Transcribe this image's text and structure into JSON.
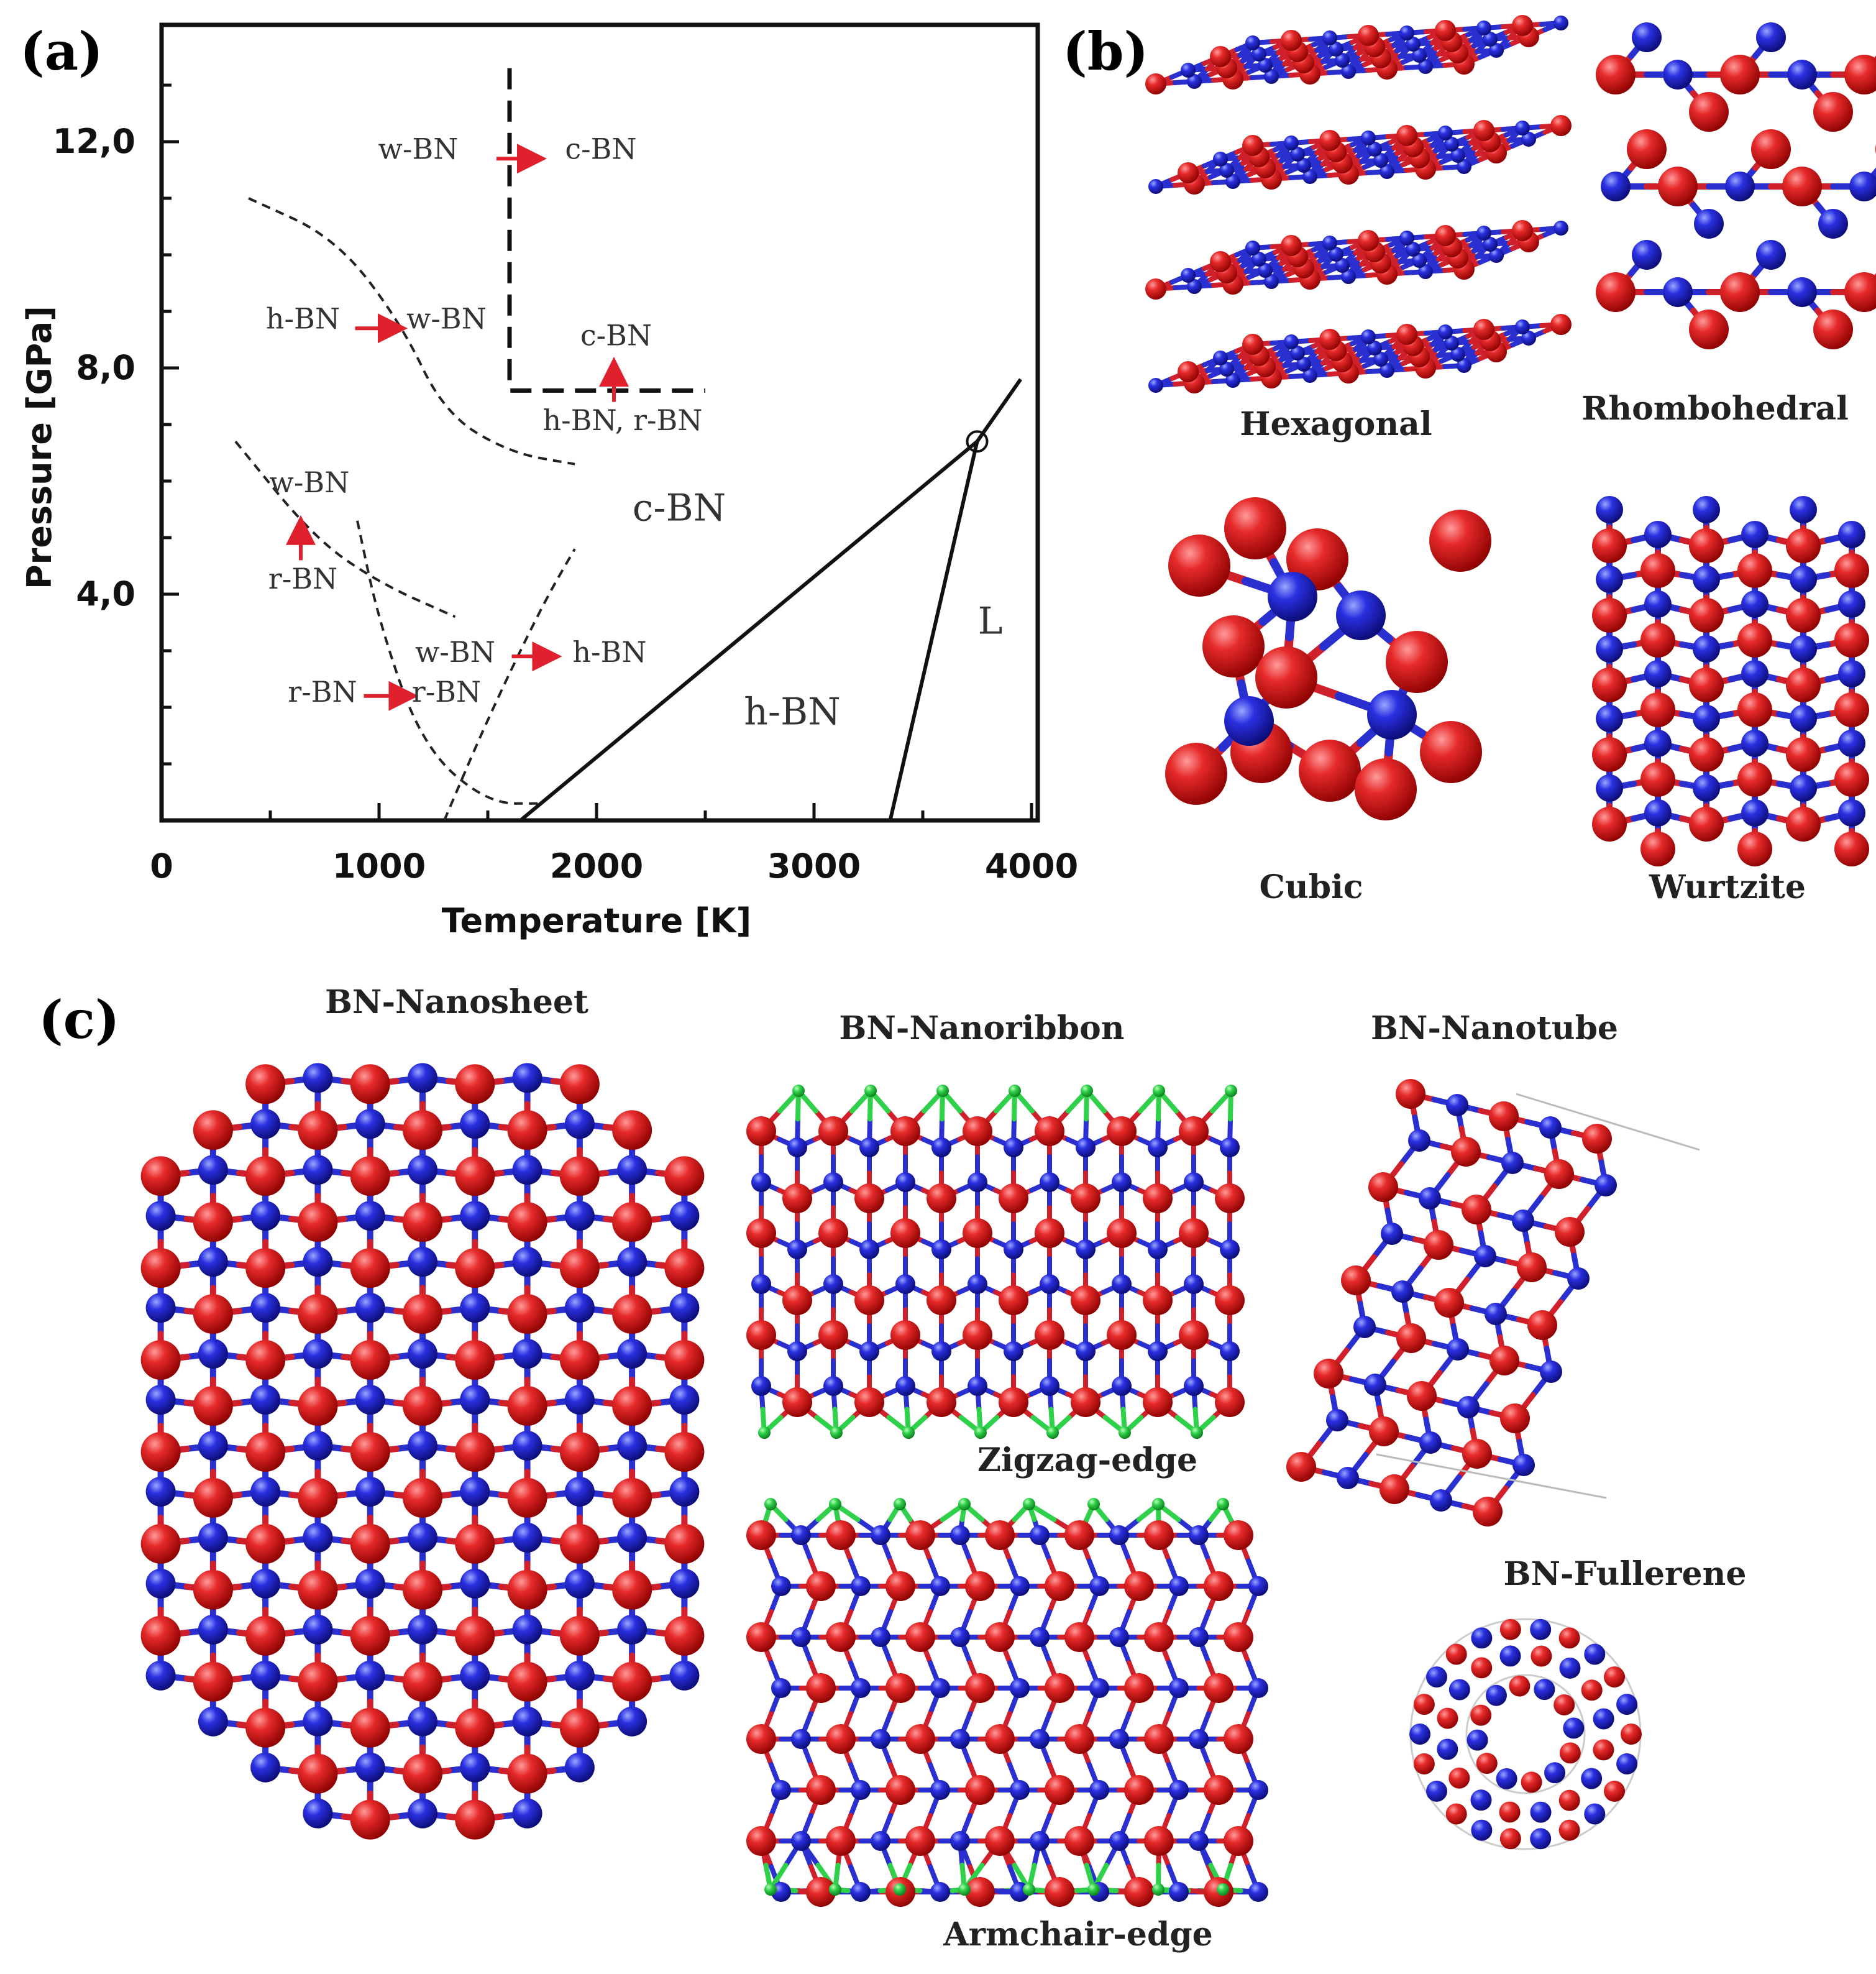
{
  "panels": {
    "a": {
      "label": "(a)",
      "chart_data": {
        "type": "phase-diagram",
        "xlabel": "Temperature [K]",
        "ylabel": "Pressure [GPa]",
        "xlim": [
          0,
          4000
        ],
        "ylim": [
          0,
          14
        ],
        "xticks": [
          "0",
          "1000",
          "2000",
          "3000",
          "4000"
        ],
        "yticks": [
          "12,0",
          "8,0",
          "4,0"
        ],
        "ytick_values": [
          12,
          8,
          4
        ],
        "boundaries": [
          {
            "style": "solid",
            "points": [
              [
                1650,
                0
              ],
              [
                3750,
                6.7
              ],
              [
                3950,
                7.8
              ]
            ]
          },
          {
            "style": "solid",
            "points": [
              [
                3350,
                0
              ],
              [
                3750,
                6.7
              ]
            ]
          },
          {
            "style": "bold-dashed",
            "points": [
              [
                1600,
                13.3
              ],
              [
                1600,
                7.6
              ],
              [
                2500,
                7.6
              ]
            ]
          },
          {
            "style": "dashed",
            "points": [
              [
                400,
                11
              ],
              [
                800,
                10.3
              ],
              [
                1100,
                8.8
              ],
              [
                1300,
                7.2
              ],
              [
                1600,
                6.5
              ],
              [
                1900,
                6.3
              ]
            ]
          },
          {
            "style": "dashed",
            "points": [
              [
                340,
                6.7
              ],
              [
                700,
                5
              ],
              [
                1000,
                4.2
              ],
              [
                1350,
                3.6
              ]
            ]
          },
          {
            "style": "dashed",
            "points": [
              [
                900,
                5.3
              ],
              [
                1000,
                3.5
              ],
              [
                1200,
                1.3
              ],
              [
                1500,
                0.3
              ],
              [
                1750,
                0.3
              ]
            ]
          },
          {
            "style": "dashed",
            "points": [
              [
                1300,
                0
              ],
              [
                1500,
                1.8
              ],
              [
                1750,
                3.8
              ],
              [
                1900,
                4.8
              ]
            ]
          }
        ],
        "triple_point": [
          3750,
          6.7
        ],
        "annotations": [
          {
            "text": "w-BN",
            "x": 1180,
            "y": 11.7,
            "size": "small"
          },
          {
            "text": "c-BN",
            "x": 2020,
            "y": 11.7,
            "size": "small"
          },
          {
            "text": "h-BN",
            "x": 650,
            "y": 8.7,
            "size": "small"
          },
          {
            "text": "w-BN",
            "x": 1310,
            "y": 8.7,
            "size": "small"
          },
          {
            "text": "c-BN",
            "x": 2090,
            "y": 8.4,
            "size": "small"
          },
          {
            "text": "h-BN, r-BN",
            "x": 2120,
            "y": 6.9,
            "size": "small"
          },
          {
            "text": "w-BN",
            "x": 680,
            "y": 5.8,
            "size": "small"
          },
          {
            "text": "c-BN",
            "x": 2380,
            "y": 5.3,
            "size": "big"
          },
          {
            "text": "r-BN",
            "x": 650,
            "y": 4.1,
            "size": "small"
          },
          {
            "text": "L",
            "x": 3810,
            "y": 3.3,
            "size": "big"
          },
          {
            "text": "w-BN",
            "x": 1350,
            "y": 2.8,
            "size": "small"
          },
          {
            "text": "h-BN",
            "x": 2060,
            "y": 2.8,
            "size": "small"
          },
          {
            "text": "r-BN",
            "x": 740,
            "y": 2.1,
            "size": "small"
          },
          {
            "text": "r-BN",
            "x": 1310,
            "y": 2.1,
            "size": "small"
          },
          {
            "text": "h-BN",
            "x": 2900,
            "y": 1.7,
            "size": "big"
          }
        ],
        "arrows": [
          {
            "from": [
              1540,
              11.7
            ],
            "to": [
              1720,
              11.7
            ]
          },
          {
            "from": [
              890,
              8.7
            ],
            "to": [
              1080,
              8.7
            ]
          },
          {
            "from": [
              2080,
              7.4
            ],
            "to": [
              2080,
              8.0
            ]
          },
          {
            "from": [
              640,
              4.6
            ],
            "to": [
              640,
              5.2
            ]
          },
          {
            "from": [
              1610,
              2.9
            ],
            "to": [
              1790,
              2.9
            ]
          },
          {
            "from": [
              930,
              2.2
            ],
            "to": [
              1130,
              2.2
            ]
          }
        ]
      }
    },
    "b": {
      "label": "(b)",
      "captions": {
        "hexagonal": "Hexagonal",
        "rhombohedral": "Rhombohedral",
        "cubic": "Cubic",
        "wurtzite": "Wurtzite"
      }
    },
    "c": {
      "label": "(c)",
      "captions": {
        "nanosheet": "BN-Nanosheet",
        "nanoribbon": "BN-Nanoribbon",
        "zigzag": "Zigzag-edge",
        "armchair": "Armchair-edge",
        "nanotube": "BN-Nanotube",
        "fullerene": "BN-Fullerene"
      }
    }
  },
  "colors": {
    "nitrogen": "#e0202c",
    "boron": "#2a30d8",
    "hydrogen": "#2fd04a",
    "arrow": "#e0202c"
  }
}
